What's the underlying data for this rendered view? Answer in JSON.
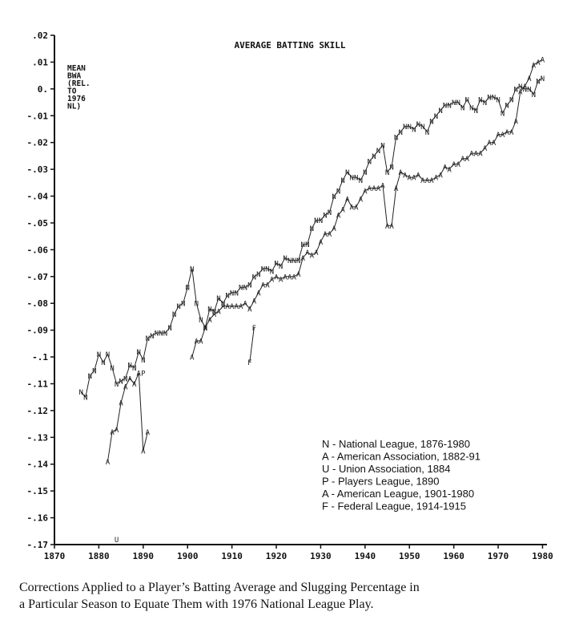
{
  "chart_data": {
    "type": "line",
    "title": "AVERAGE BATTING SKILL",
    "ylabel_lines": [
      "MEAN",
      "BWA",
      "(REL.",
      "TO",
      "1976",
      "NL)"
    ],
    "xlim": [
      1870,
      1981
    ],
    "ylim": [
      -0.17,
      0.02
    ],
    "x_ticks": [
      1870,
      1880,
      1890,
      1900,
      1910,
      1920,
      1930,
      1940,
      1950,
      1960,
      1970,
      1980
    ],
    "x_tick_labels": [
      "1870",
      "1880",
      "1890",
      "1900",
      "1910",
      "1920",
      "1930",
      "1940",
      "1950",
      "1960",
      "1970",
      "1980"
    ],
    "y_ticks": [
      0.02,
      0.01,
      0,
      -0.01,
      -0.02,
      -0.03,
      -0.04,
      -0.05,
      -0.06,
      -0.07,
      -0.08,
      -0.09,
      -0.1,
      -0.11,
      -0.12,
      -0.13,
      -0.14,
      -0.15,
      -0.16,
      -0.17
    ],
    "y_tick_labels": [
      ".02",
      ".01",
      "0.",
      "-.01",
      "-.02",
      "-.03",
      "-.04",
      "-.05",
      "-.06",
      "-.07",
      "-.08",
      "-.09",
      "-.1",
      "-.11",
      "-.12",
      "-.13",
      "-.14",
      "-.15",
      "-.16",
      "-.17"
    ],
    "grid": false,
    "legend_position": "bottom-right",
    "legend": [
      "N - National League, 1876-1980",
      "A - American Association, 1882-91",
      "U - Union Association, 1884",
      "P - Players League, 1890",
      "A - American League, 1901-1980",
      "F - Federal League, 1914-1915"
    ],
    "series": [
      {
        "symbol": "N",
        "x": [
          1876,
          1877,
          1878,
          1879,
          1880,
          1881,
          1882,
          1883,
          1884,
          1885,
          1886,
          1887,
          1888,
          1889,
          1890,
          1891,
          1892,
          1893,
          1894,
          1895,
          1896,
          1897,
          1898,
          1899,
          1900,
          1901,
          1902,
          1903,
          1904,
          1905,
          1906,
          1907,
          1908,
          1909,
          1910,
          1911,
          1912,
          1913,
          1914,
          1915,
          1916,
          1917,
          1918,
          1919,
          1920,
          1921,
          1922,
          1923,
          1924,
          1925,
          1926,
          1927,
          1928,
          1929,
          1930,
          1931,
          1932,
          1933,
          1934,
          1935,
          1936,
          1937,
          1938,
          1939,
          1940,
          1941,
          1942,
          1943,
          1944,
          1945,
          1946,
          1947,
          1948,
          1949,
          1950,
          1951,
          1952,
          1953,
          1954,
          1955,
          1956,
          1957,
          1958,
          1959,
          1960,
          1961,
          1962,
          1963,
          1964,
          1965,
          1966,
          1967,
          1968,
          1969,
          1970,
          1971,
          1972,
          1973,
          1974,
          1975,
          1976,
          1977,
          1978,
          1979,
          1980
        ],
        "y": [
          -0.113,
          -0.115,
          -0.107,
          -0.105,
          -0.099,
          -0.102,
          -0.099,
          -0.104,
          -0.11,
          -0.109,
          -0.108,
          -0.103,
          -0.104,
          -0.098,
          -0.101,
          -0.093,
          -0.092,
          -0.091,
          -0.091,
          -0.091,
          -0.089,
          -0.084,
          -0.081,
          -0.08,
          -0.074,
          -0.067,
          -0.08,
          -0.086,
          -0.089,
          -0.082,
          -0.083,
          -0.078,
          -0.08,
          -0.077,
          -0.076,
          -0.076,
          -0.074,
          -0.074,
          -0.073,
          -0.07,
          -0.069,
          -0.067,
          -0.067,
          -0.068,
          -0.065,
          -0.066,
          -0.063,
          -0.064,
          -0.064,
          -0.064,
          -0.058,
          -0.058,
          -0.052,
          -0.049,
          -0.049,
          -0.047,
          -0.046,
          -0.04,
          -0.038,
          -0.034,
          -0.031,
          -0.033,
          -0.033,
          -0.034,
          -0.031,
          -0.027,
          -0.025,
          -0.023,
          -0.021,
          -0.031,
          -0.029,
          -0.018,
          -0.016,
          -0.014,
          -0.014,
          -0.015,
          -0.013,
          -0.014,
          -0.016,
          -0.012,
          -0.01,
          -0.008,
          -0.006,
          -0.006,
          -0.005,
          -0.005,
          -0.007,
          -0.004,
          -0.007,
          -0.008,
          -0.004,
          -0.005,
          -0.003,
          -0.003,
          -0.004,
          -0.009,
          -0.006,
          -0.004,
          0.0,
          0.001,
          0.0,
          0.0,
          -0.002,
          0.003,
          0.004
        ]
      },
      {
        "symbol": "A",
        "x": [
          1882,
          1883,
          1884,
          1885,
          1886,
          1887,
          1888,
          1889,
          1890,
          1891
        ],
        "y": [
          -0.139,
          -0.128,
          -0.127,
          -0.117,
          -0.111,
          -0.108,
          -0.11,
          -0.106,
          -0.135,
          -0.128
        ]
      },
      {
        "symbol": "U",
        "x": [
          1884
        ],
        "y": [
          -0.168
        ]
      },
      {
        "symbol": "P",
        "x": [
          1890
        ],
        "y": [
          -0.106
        ]
      },
      {
        "symbol": "A",
        "x": [
          1901,
          1902,
          1903,
          1904,
          1905,
          1906,
          1907,
          1908,
          1909,
          1910,
          1911,
          1912,
          1913,
          1914,
          1915,
          1916,
          1917,
          1918,
          1919,
          1920,
          1921,
          1922,
          1923,
          1924,
          1925,
          1926,
          1927,
          1928,
          1929,
          1930,
          1931,
          1932,
          1933,
          1934,
          1935,
          1936,
          1937,
          1938,
          1939,
          1940,
          1941,
          1942,
          1943,
          1944,
          1945,
          1946,
          1947,
          1948,
          1949,
          1950,
          1951,
          1952,
          1953,
          1954,
          1955,
          1956,
          1957,
          1958,
          1959,
          1960,
          1961,
          1962,
          1963,
          1964,
          1965,
          1966,
          1967,
          1968,
          1969,
          1970,
          1971,
          1972,
          1973,
          1974,
          1975,
          1976,
          1977,
          1978,
          1979,
          1980
        ],
        "y": [
          -0.1,
          -0.094,
          -0.094,
          -0.089,
          -0.086,
          -0.084,
          -0.083,
          -0.081,
          -0.081,
          -0.081,
          -0.081,
          -0.081,
          -0.08,
          -0.082,
          -0.079,
          -0.076,
          -0.073,
          -0.073,
          -0.071,
          -0.07,
          -0.071,
          -0.07,
          -0.07,
          -0.07,
          -0.069,
          -0.063,
          -0.061,
          -0.062,
          -0.061,
          -0.057,
          -0.054,
          -0.054,
          -0.052,
          -0.047,
          -0.045,
          -0.041,
          -0.044,
          -0.044,
          -0.041,
          -0.038,
          -0.037,
          -0.037,
          -0.037,
          -0.036,
          -0.051,
          -0.051,
          -0.037,
          -0.031,
          -0.032,
          -0.033,
          -0.033,
          -0.032,
          -0.034,
          -0.034,
          -0.034,
          -0.033,
          -0.032,
          -0.029,
          -0.03,
          -0.028,
          -0.028,
          -0.026,
          -0.026,
          -0.024,
          -0.024,
          -0.024,
          -0.022,
          -0.02,
          -0.02,
          -0.017,
          -0.017,
          -0.016,
          -0.016,
          -0.012,
          -0.001,
          0.001,
          0.004,
          0.009,
          0.01,
          0.011
        ]
      },
      {
        "symbol": "F",
        "x": [
          1914,
          1915
        ],
        "y": [
          -0.102,
          -0.089
        ]
      }
    ]
  },
  "caption_lines": [
    "Corrections Applied to a Player’s Batting Average and Slugging Percentage in",
    "a Particular Season to Equate Them with 1976 National League Play."
  ]
}
